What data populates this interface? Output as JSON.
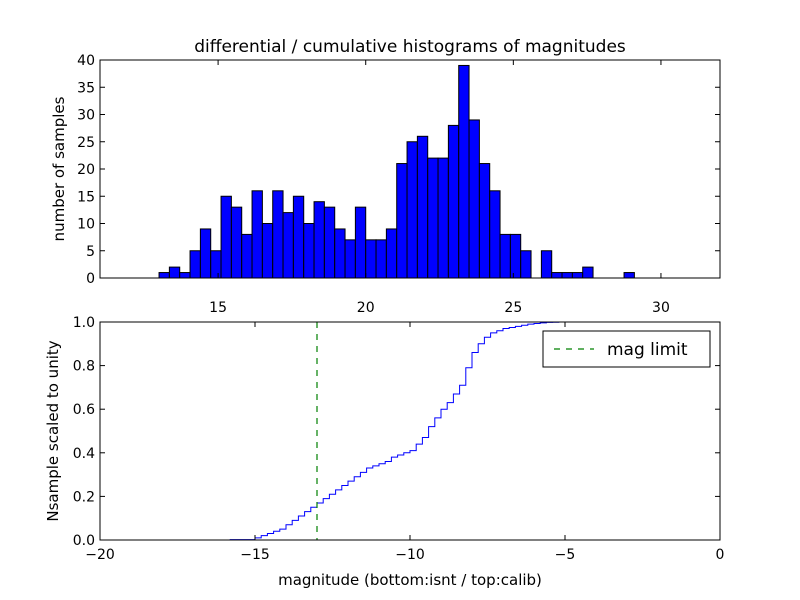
{
  "colors": {
    "bar_fill": "#0000ff",
    "bar_edge": "#000000",
    "cumulative_line": "#0000ff",
    "mag_limit": "#008000",
    "axes": "#000000",
    "background": "#ffffff"
  },
  "chart_data": [
    {
      "type": "bar",
      "title": "differential / cumulative histograms of magnitudes",
      "xlabel": "",
      "ylabel": "number of samples",
      "xlim": [
        11.0,
        32.0
      ],
      "ylim": [
        0,
        40
      ],
      "xticks": [
        15,
        20,
        25,
        30
      ],
      "yticks": [
        0,
        5,
        10,
        15,
        20,
        25,
        30,
        35,
        40
      ],
      "xtick_position": "top",
      "bin_width": 0.35,
      "bin_start": 13.0,
      "values": [
        1,
        2,
        1,
        5,
        9,
        5,
        15,
        13,
        8,
        16,
        10,
        16,
        12,
        15,
        10,
        14,
        13,
        9,
        7,
        13,
        7,
        7,
        9,
        21,
        25,
        26,
        22,
        22,
        28,
        39,
        29,
        21,
        16,
        8,
        8,
        5,
        0,
        5,
        1,
        1,
        1,
        2,
        0,
        0,
        0,
        1
      ]
    },
    {
      "type": "line",
      "drawstyle": "steps",
      "xlabel": "magnitude (bottom:isnt / top:calib)",
      "ylabel": "Nsample scaled to unity",
      "xlim": [
        -20,
        0
      ],
      "ylim": [
        0.0,
        1.0
      ],
      "xticks": [
        -20,
        -15,
        -10,
        -5,
        0
      ],
      "yticks": [
        0.0,
        0.2,
        0.4,
        0.6,
        0.8,
        1.0
      ],
      "ytick_labels": [
        "0.0",
        "0.2",
        "0.4",
        "0.6",
        "0.8",
        "1.0"
      ],
      "series": [
        {
          "name": "cumulative",
          "x": [
            -20,
            -15.8,
            -15.0,
            -14.8,
            -14.6,
            -14.4,
            -14.2,
            -14.0,
            -13.8,
            -13.6,
            -13.4,
            -13.2,
            -13.0,
            -12.8,
            -12.6,
            -12.4,
            -12.2,
            -12.0,
            -11.8,
            -11.6,
            -11.4,
            -11.2,
            -11.0,
            -10.8,
            -10.6,
            -10.4,
            -10.2,
            -10.0,
            -9.8,
            -9.6,
            -9.4,
            -9.2,
            -9.0,
            -8.8,
            -8.6,
            -8.4,
            -8.2,
            -8.0,
            -7.8,
            -7.6,
            -7.4,
            -7.2,
            -7.0,
            -6.8,
            -6.6,
            -6.4,
            -6.2,
            -6.0,
            -5.8,
            -5.6,
            -5.4,
            -5.2,
            -5.0,
            0.0
          ],
          "y": [
            0.0,
            0.002,
            0.01,
            0.02,
            0.03,
            0.04,
            0.05,
            0.07,
            0.09,
            0.11,
            0.13,
            0.15,
            0.17,
            0.19,
            0.21,
            0.23,
            0.25,
            0.27,
            0.29,
            0.31,
            0.33,
            0.34,
            0.35,
            0.36,
            0.38,
            0.39,
            0.4,
            0.41,
            0.44,
            0.47,
            0.52,
            0.56,
            0.6,
            0.63,
            0.67,
            0.71,
            0.79,
            0.86,
            0.9,
            0.93,
            0.95,
            0.96,
            0.97,
            0.975,
            0.98,
            0.985,
            0.99,
            0.993,
            0.996,
            0.998,
            0.999,
            1.0,
            1.0,
            1.0
          ]
        }
      ],
      "vline": {
        "name": "mag limit",
        "x": -13.0,
        "style": "dashed"
      },
      "legend": {
        "entries": [
          "mag limit"
        ],
        "placement": "upper right"
      }
    }
  ]
}
